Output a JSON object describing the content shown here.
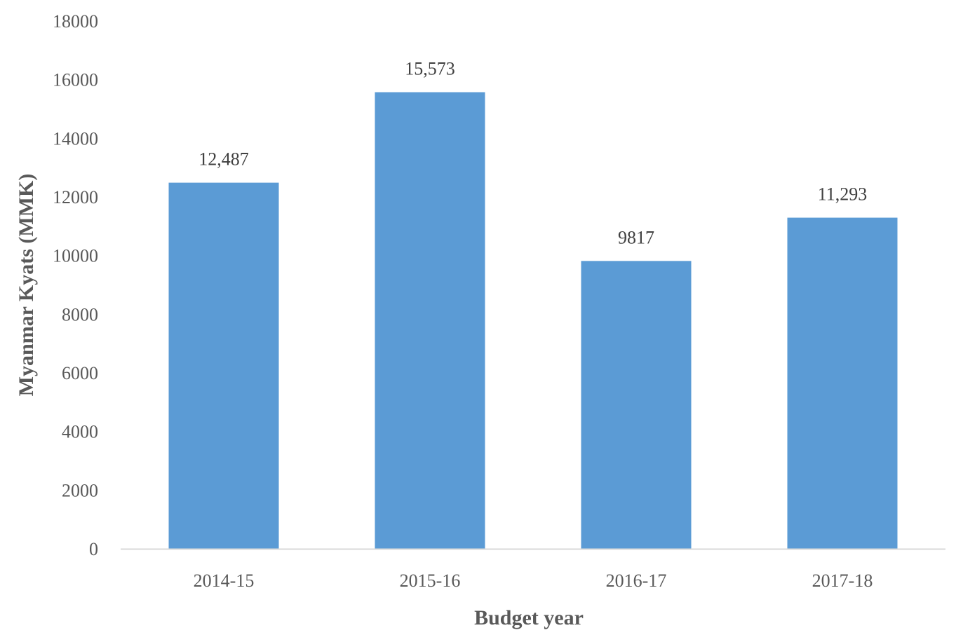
{
  "chart_data": {
    "type": "bar",
    "categories": [
      "2014-15",
      "2015-16",
      "2016-17",
      "2017-18"
    ],
    "values": [
      12487,
      15573,
      9817,
      11293
    ],
    "data_labels": [
      "12,487",
      "15,573",
      "9817",
      "11,293"
    ],
    "xlabel": "Budget year",
    "ylabel": "Myanmar Kyats (MMK)",
    "ylim": [
      0,
      18000
    ],
    "yticks": [
      0,
      2000,
      4000,
      6000,
      8000,
      10000,
      12000,
      14000,
      16000,
      18000
    ],
    "bar_color": "#5b9bd5",
    "axis_color": "#d9d9d9",
    "grid": false,
    "legend": "none"
  }
}
